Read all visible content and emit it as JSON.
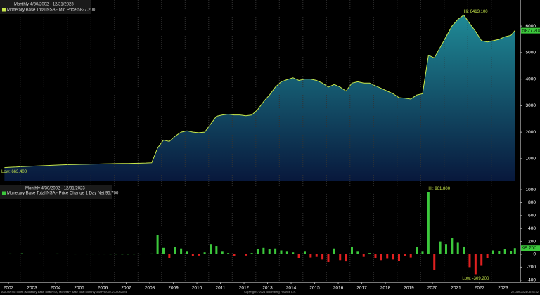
{
  "chart_data": [
    {
      "type": "area",
      "header": "Monthly 4/30/2002 - 12/31/2023",
      "x": [
        2002.33,
        2002.58,
        2002.83,
        2003.08,
        2003.33,
        2003.58,
        2003.83,
        2004.08,
        2004.33,
        2004.58,
        2004.83,
        2005.08,
        2005.33,
        2005.58,
        2005.83,
        2006.08,
        2006.33,
        2006.58,
        2006.83,
        2007.08,
        2007.33,
        2007.58,
        2007.83,
        2008.08,
        2008.33,
        2008.58,
        2008.83,
        2009.08,
        2009.33,
        2009.58,
        2009.83,
        2010.08,
        2010.33,
        2010.58,
        2010.83,
        2011.08,
        2011.33,
        2011.58,
        2011.83,
        2012.08,
        2012.33,
        2012.58,
        2012.83,
        2013.08,
        2013.33,
        2013.58,
        2013.83,
        2014.08,
        2014.33,
        2014.58,
        2014.83,
        2015.08,
        2015.33,
        2015.58,
        2015.83,
        2016.08,
        2016.33,
        2016.58,
        2016.83,
        2017.08,
        2017.33,
        2017.58,
        2017.83,
        2018.08,
        2018.33,
        2018.58,
        2018.83,
        2019.08,
        2019.33,
        2019.58,
        2019.83,
        2020.08,
        2020.33,
        2020.58,
        2020.83,
        2021.08,
        2021.33,
        2021.58,
        2021.83,
        2022.08,
        2022.33,
        2022.58,
        2022.83,
        2023.08,
        2023.33,
        2023.58,
        2023.83,
        2024.0
      ],
      "series": [
        {
          "name": "Monetary Base Total NSA - Mid Price 5827.200",
          "color": "#c8e84a",
          "values": [
            663.4,
            675,
            685,
            700,
            710,
            720,
            730,
            740,
            750,
            760,
            770,
            775,
            780,
            785,
            790,
            795,
            800,
            805,
            810,
            815,
            818,
            820,
            825,
            830,
            835,
            845,
            1400,
            1700,
            1650,
            1850,
            2000,
            2050,
            2000,
            1980,
            2000,
            2300,
            2600,
            2650,
            2680,
            2650,
            2650,
            2620,
            2650,
            2850,
            3150,
            3400,
            3700,
            3900,
            3980,
            4050,
            3950,
            4000,
            4000,
            3950,
            3850,
            3700,
            3800,
            3700,
            3550,
            3850,
            3900,
            3850,
            3850,
            3750,
            3650,
            3550,
            3450,
            3300,
            3280,
            3250,
            3400,
            3450,
            4900,
            4800,
            5200,
            5600,
            6000,
            6250,
            6413.1,
            6100,
            5800,
            5450,
            5400,
            5450,
            5500,
            5600,
            5650,
            5827.2
          ]
        }
      ],
      "last_label": "5827.200",
      "annotations": [
        "Hi: 6413.100",
        "Low: 663.400"
      ],
      "xlim": [
        2002.14,
        2024.23
      ],
      "ylim": [
        150,
        6850
      ],
      "yticks": [
        1000,
        2000,
        3000,
        4000,
        5000,
        6000
      ]
    },
    {
      "type": "bar",
      "header": "Monthly 4/30/2002 - 12/31/2023",
      "x": [
        2002.33,
        2002.58,
        2002.83,
        2003.08,
        2003.33,
        2003.58,
        2003.83,
        2004.08,
        2004.33,
        2004.58,
        2004.83,
        2005.08,
        2005.33,
        2005.58,
        2005.83,
        2006.08,
        2006.33,
        2006.58,
        2006.83,
        2007.08,
        2007.33,
        2007.58,
        2007.83,
        2008.08,
        2008.33,
        2008.58,
        2008.83,
        2009.08,
        2009.33,
        2009.58,
        2009.83,
        2010.08,
        2010.33,
        2010.58,
        2010.83,
        2011.08,
        2011.33,
        2011.58,
        2011.83,
        2012.08,
        2012.33,
        2012.58,
        2012.83,
        2013.08,
        2013.33,
        2013.58,
        2013.83,
        2014.08,
        2014.33,
        2014.58,
        2014.83,
        2015.08,
        2015.33,
        2015.58,
        2015.83,
        2016.08,
        2016.33,
        2016.58,
        2016.83,
        2017.08,
        2017.33,
        2017.58,
        2017.83,
        2018.08,
        2018.33,
        2018.58,
        2018.83,
        2019.08,
        2019.33,
        2019.58,
        2019.83,
        2020.08,
        2020.33,
        2020.58,
        2020.83,
        2021.08,
        2021.33,
        2021.58,
        2021.83,
        2022.08,
        2022.33,
        2022.58,
        2022.83,
        2023.08,
        2023.33,
        2023.58,
        2023.83,
        2024.0
      ],
      "series": [
        {
          "name": "Monetary Base Total NSA - Price Change 1 Day Net 95.700",
          "color": "#3cc83c",
          "negative_color": "#e02020",
          "values": [
            10,
            12,
            8,
            15,
            10,
            10,
            12,
            10,
            10,
            12,
            8,
            6,
            5,
            6,
            5,
            5,
            5,
            5,
            4,
            4,
            3,
            3,
            4,
            5,
            6,
            12,
            300,
            100,
            -60,
            110,
            90,
            40,
            -30,
            -20,
            30,
            150,
            130,
            40,
            20,
            -30,
            10,
            -20,
            20,
            80,
            100,
            80,
            90,
            60,
            40,
            30,
            -60,
            40,
            -50,
            -40,
            -80,
            -120,
            90,
            -90,
            -110,
            120,
            40,
            -40,
            20,
            -60,
            -90,
            -70,
            -80,
            -100,
            -30,
            -50,
            110,
            40,
            961.8,
            -250,
            200,
            150,
            250,
            180,
            120,
            -200,
            -309.2,
            -180,
            -60,
            60,
            50,
            80,
            50,
            95.7
          ]
        }
      ],
      "last_label": "95.700",
      "annotations": [
        "Hi: 961.800",
        "Low: -309.200"
      ],
      "xlim": [
        2002.14,
        2024.23
      ],
      "ylim": [
        -435,
        1055
      ],
      "yticks": [
        -400,
        -200,
        0,
        200,
        400,
        600,
        800,
        1000
      ],
      "xticks": [
        {
          "value": 2002.5,
          "label": "2002"
        },
        {
          "value": 2003.5,
          "label": "2003"
        },
        {
          "value": 2004.5,
          "label": "2004"
        },
        {
          "value": 2005.5,
          "label": "2005"
        },
        {
          "value": 2006.5,
          "label": "2006"
        },
        {
          "value": 2007.5,
          "label": "2007"
        },
        {
          "value": 2008.5,
          "label": "2008"
        },
        {
          "value": 2009.5,
          "label": "2009"
        },
        {
          "value": 2010.5,
          "label": "2010"
        },
        {
          "value": 2011.5,
          "label": "2011"
        },
        {
          "value": 2012.5,
          "label": "2012"
        },
        {
          "value": 2013.5,
          "label": "2013"
        },
        {
          "value": 2014.5,
          "label": "2014"
        },
        {
          "value": 2015.5,
          "label": "2015"
        },
        {
          "value": 2016.5,
          "label": "2016"
        },
        {
          "value": 2017.5,
          "label": "2017"
        },
        {
          "value": 2018.5,
          "label": "2018"
        },
        {
          "value": 2019.5,
          "label": "2019"
        },
        {
          "value": 2020.5,
          "label": "2020"
        },
        {
          "value": 2021.5,
          "label": "2021"
        },
        {
          "value": 2022.5,
          "label": "2022"
        },
        {
          "value": 2023.5,
          "label": "2023"
        }
      ]
    }
  ],
  "footer": [
    "AMDBNSM Index (Monetary Base Total NSA) Monetary Base Total  Monthly 30APR2002-27JAN2024",
    "Copyright© 2024 Bloomberg Finance L.P.",
    "27-Jan-2024 08:28:32"
  ]
}
